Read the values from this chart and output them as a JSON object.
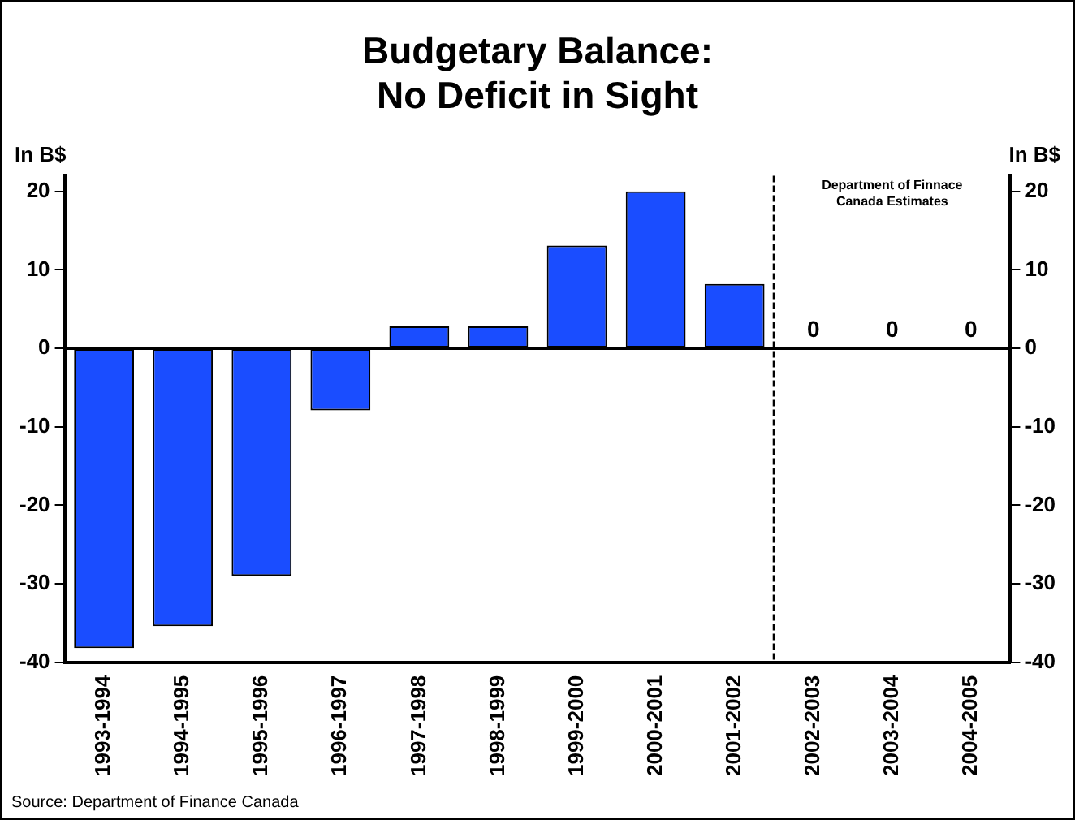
{
  "chart_data": {
    "type": "bar",
    "title": "Budgetary Balance:\nNo Deficit in Sight",
    "ylabel": "In B$",
    "y2label": "In B$",
    "categories": [
      "1993-1994",
      "1994-1995",
      "1995-1996",
      "1996-1997",
      "1997-1998",
      "1998-1999",
      "1999-2000",
      "2000-2001",
      "2001-2002",
      "2002-2003",
      "2003-2004",
      "2004-2005"
    ],
    "values": [
      -38.2,
      -35.4,
      -29.0,
      -7.9,
      2.8,
      2.8,
      13.1,
      20.0,
      8.2,
      0,
      0,
      0
    ],
    "value_labels": [
      null,
      null,
      null,
      null,
      null,
      null,
      null,
      null,
      null,
      "0",
      "0",
      "0"
    ],
    "color": "#1a4dff",
    "ylim": [
      -40,
      22
    ],
    "yticks": [
      -40,
      -30,
      -20,
      -10,
      0,
      10,
      20
    ],
    "y2lim": [
      -40,
      22
    ],
    "y2ticks": [
      -40,
      -30,
      -20,
      -10,
      0,
      10,
      20
    ],
    "ref_lines": [
      {
        "axis": "x",
        "value": "2002-2003",
        "label": "Department of Finnace\nCanada Estimates",
        "line_style": "dashed",
        "color": "#000000"
      }
    ],
    "annotations": [
      "Source: Department of Finance Canada"
    ],
    "grid": false,
    "legend": false
  }
}
